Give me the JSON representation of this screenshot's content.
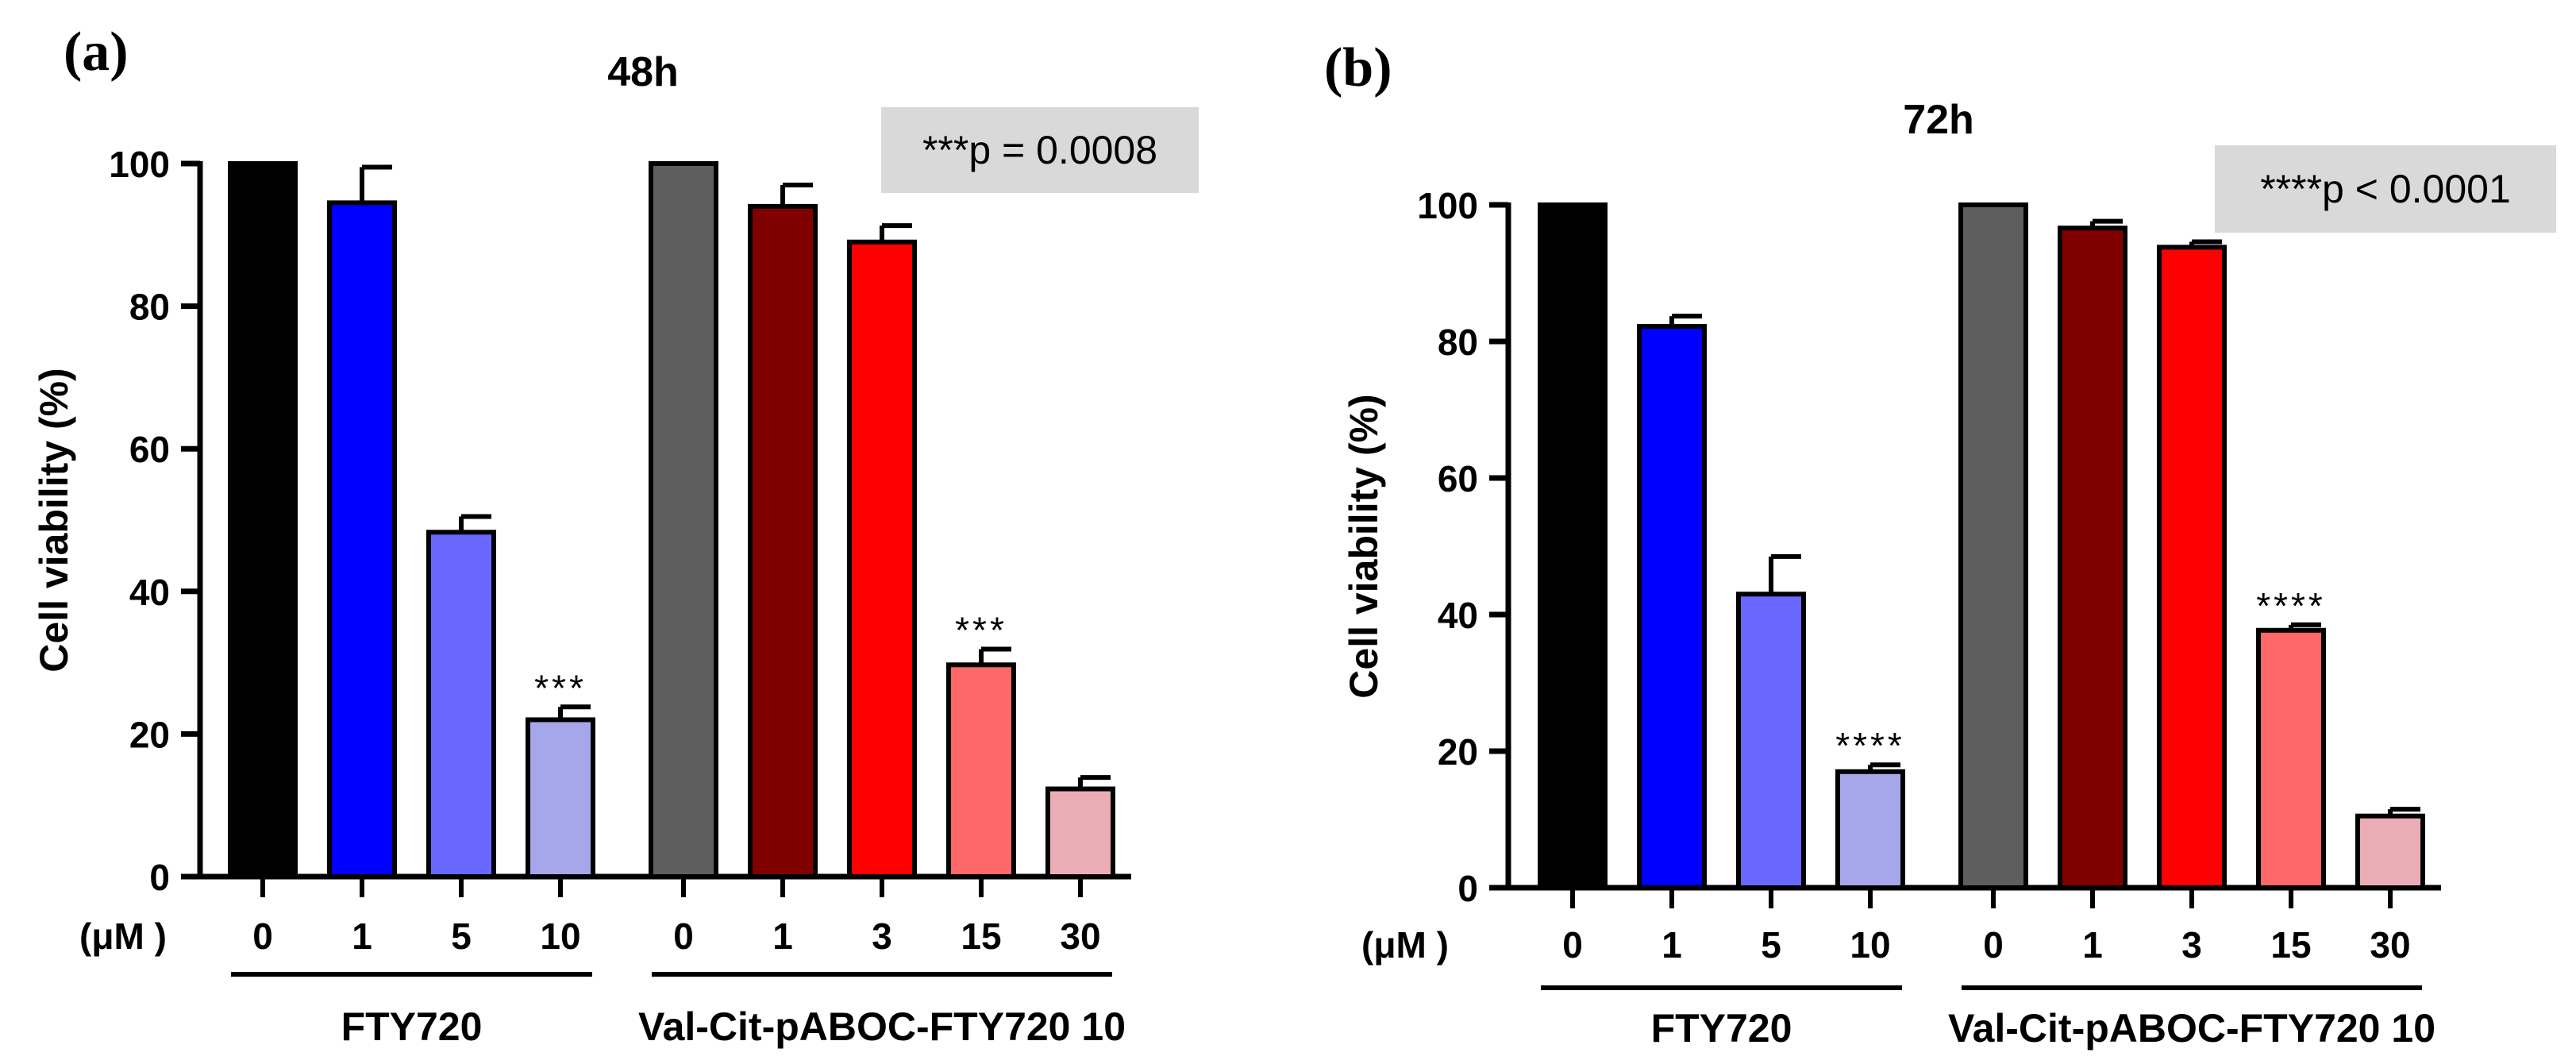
{
  "figure": {
    "panel_labels": [
      "(a)",
      "(b)"
    ]
  },
  "chart_data": [
    {
      "type": "bar",
      "panel": "(a)",
      "title": "48h",
      "ylabel": "Cell viability (%)",
      "xlabel": "",
      "unit_label": "(μM )",
      "ylim": [
        0,
        100
      ],
      "yticks": [
        0,
        20,
        40,
        60,
        80,
        100
      ],
      "categories": [
        "0",
        "1",
        "5",
        "10",
        "0",
        "1",
        "3",
        "15",
        "30"
      ],
      "values": [
        100,
        94.5,
        48.3,
        22.0,
        100,
        94.0,
        89.0,
        29.7,
        12.3
      ],
      "errors": [
        0,
        5.0,
        2.2,
        1.8,
        0,
        3.0,
        2.3,
        2.2,
        1.6
      ],
      "colors": [
        "#000000",
        "#0000ff",
        "#6868ff",
        "#a6a6ea",
        "#5e5e5e",
        "#800000",
        "#ff0000",
        "#ff6868",
        "#ebadb5"
      ],
      "annotations": [
        "",
        "",
        "",
        "***",
        "",
        "",
        "",
        "***",
        ""
      ],
      "groups": [
        {
          "label": "FTY720",
          "start": 0,
          "end": 3
        },
        {
          "label": "Val-Cit-pABOC-FTY720 10",
          "start": 4,
          "end": 8
        }
      ],
      "stats_box": "***p = 0.0008"
    },
    {
      "type": "bar",
      "panel": "(b)",
      "title": "72h",
      "ylabel": "Cell viability (%)",
      "xlabel": "",
      "unit_label": "(μM )",
      "ylim": [
        0,
        100
      ],
      "yticks": [
        0,
        20,
        40,
        60,
        80,
        100
      ],
      "categories": [
        "0",
        "1",
        "5",
        "10",
        "0",
        "1",
        "3",
        "15",
        "30"
      ],
      "values": [
        100,
        82.2,
        43.0,
        17.0,
        100,
        96.6,
        93.8,
        37.7,
        10.5
      ],
      "errors": [
        0,
        1.5,
        5.5,
        1.0,
        0,
        1.0,
        0.8,
        0.8,
        1.0
      ],
      "colors": [
        "#000000",
        "#0000ff",
        "#6868ff",
        "#a6a6ea",
        "#5e5e5e",
        "#800000",
        "#ff0000",
        "#ff6868",
        "#ebadb5"
      ],
      "annotations": [
        "",
        "",
        "",
        "****",
        "",
        "",
        "",
        "****",
        ""
      ],
      "groups": [
        {
          "label": "FTY720",
          "start": 0,
          "end": 3
        },
        {
          "label": "Val-Cit-pABOC-FTY720 10",
          "start": 4,
          "end": 8
        }
      ],
      "stats_box": "****p < 0.0001"
    }
  ]
}
